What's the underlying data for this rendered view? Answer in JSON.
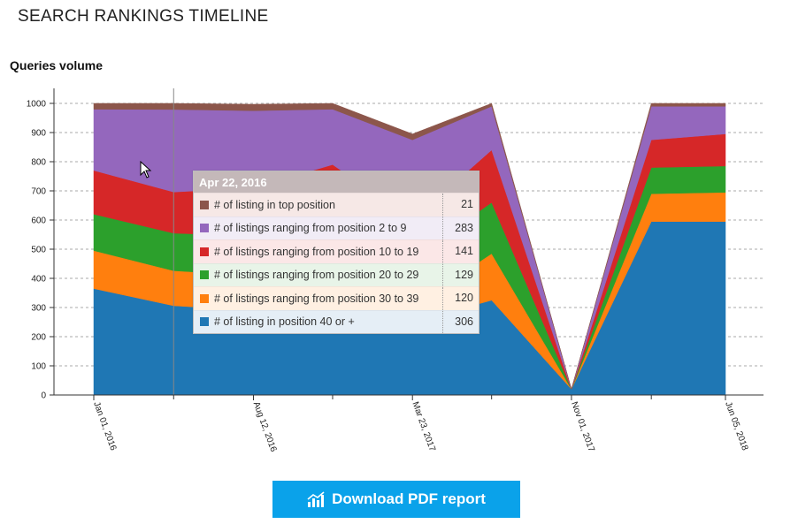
{
  "page": {
    "title": "SEARCH RANKINGS TIMELINE",
    "subtitle": "Queries volume"
  },
  "download": {
    "label": "Download PDF report",
    "icon": "bar-chart-icon"
  },
  "tooltip": {
    "date": "Apr 22, 2016",
    "rows": [
      {
        "label": "# of listing in top position",
        "value": "21",
        "color": "#8c564b",
        "bg": "#f6e8e6"
      },
      {
        "label": "# of listings ranging from position 2 to 9",
        "value": "283",
        "color": "#9467bd",
        "bg": "#f1ecf6"
      },
      {
        "label": "# of listings ranging from position 10 to 19",
        "value": "141",
        "color": "#d62728",
        "bg": "#fbe7e7"
      },
      {
        "label": "# of listings ranging from position 20 to 29",
        "value": "129",
        "color": "#2ca02c",
        "bg": "#e8f4e8"
      },
      {
        "label": "# of listings ranging from position 30 to 39",
        "value": "120",
        "color": "#ff7f0e",
        "bg": "#fff0e2"
      },
      {
        "label": "# of listing in position 40 or +",
        "value": "306",
        "color": "#1f77b4",
        "bg": "#e5eef6"
      }
    ]
  },
  "chart_data": {
    "type": "area",
    "stacked": true,
    "x": [
      "2016-01-01",
      "2016-04-22",
      "2016-08-12",
      "2016-12-01",
      "2017-03-23",
      "2017-07-12",
      "2017-11-01",
      "2018-02-21",
      "2018-06-05"
    ],
    "x_tick_labels": [
      "Jan 01, 2016",
      "Aug 12, 2016",
      "Mar 23, 2017",
      "Nov 01, 2017",
      "Jun 05, 2018"
    ],
    "x_tick_positions": [
      "2016-01-01",
      "2016-08-12",
      "2017-03-23",
      "2017-11-01",
      "2018-06-05"
    ],
    "x_minor_ticks": [
      "2016-04-22",
      "2016-12-01",
      "2017-07-12",
      "2018-02-21"
    ],
    "series": [
      {
        "name": "# of listing in position 40 or +",
        "color": "#1f77b4",
        "values": [
          365,
          306,
          290,
          290,
          250,
          325,
          20,
          595,
          595
        ]
      },
      {
        "name": "# of listings ranging from position 30 to 39",
        "color": "#ff7f0e",
        "values": [
          130,
          120,
          120,
          110,
          55,
          160,
          0,
          95,
          100
        ]
      },
      {
        "name": "# of listings ranging from position 20 to 29",
        "color": "#2ca02c",
        "values": [
          125,
          129,
          135,
          175,
          165,
          175,
          0,
          90,
          90
        ]
      },
      {
        "name": "# of listings ranging from position 10 to 19",
        "color": "#d62728",
        "values": [
          150,
          141,
          165,
          215,
          130,
          180,
          0,
          95,
          110
        ]
      },
      {
        "name": "# of listings ranging from position 2 to 9",
        "color": "#9467bd",
        "values": [
          210,
          283,
          265,
          190,
          275,
          150,
          0,
          115,
          95
        ]
      },
      {
        "name": "# of listing in top position",
        "color": "#8c564b",
        "values": [
          20,
          21,
          22,
          20,
          20,
          10,
          0,
          10,
          10
        ]
      }
    ],
    "ylim": [
      0,
      1000
    ],
    "y_ticks": [
      0,
      100,
      200,
      300,
      400,
      500,
      600,
      700,
      800,
      900,
      1000
    ],
    "grid": "horizontal dashed",
    "legend": "tooltip"
  }
}
